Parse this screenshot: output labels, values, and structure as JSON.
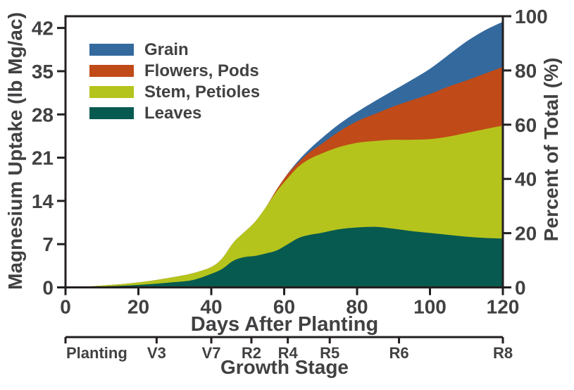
{
  "colors": {
    "background": "#ffffff",
    "text": "#414042",
    "axis": "#231f20"
  },
  "legend": {
    "items": [
      {
        "label": "Grain",
        "color": "#34699e"
      },
      {
        "label": "Flowers, Pods",
        "color": "#c04a18"
      },
      {
        "label": "Stem, Petioles",
        "color": "#b5c41c"
      },
      {
        "label": "Leaves",
        "color": "#075a50"
      }
    ]
  },
  "chart_data": {
    "type": "area",
    "stacked": true,
    "title": "",
    "xlabel": "Days After Planting",
    "ylabel_left": "Magnesium Uptake (lb Mg/ac)",
    "ylabel_right": "Percent of Total (%)",
    "stage_axis_label": "Growth Stage",
    "x_range": [
      0,
      120
    ],
    "y_left_range": [
      0,
      43.9
    ],
    "y_right_range": [
      0,
      100
    ],
    "x_ticks": [
      0,
      20,
      40,
      60,
      80,
      100,
      120
    ],
    "y_left_ticks": [
      0,
      7,
      14,
      21,
      28,
      35,
      42
    ],
    "y_right_ticks": [
      0,
      20,
      40,
      60,
      80,
      100
    ],
    "grid": false,
    "legend_position": "upper-left-inside",
    "x": [
      0,
      5,
      10,
      15,
      20,
      25,
      30,
      35,
      40,
      43,
      46,
      49,
      52,
      55,
      58,
      61,
      64,
      67,
      70,
      75,
      80,
      85,
      90,
      95,
      100,
      105,
      110,
      115,
      120
    ],
    "series": [
      {
        "name": "Grain",
        "color": "#34699e",
        "values": [
          0,
          0,
          0,
          0,
          0,
          0,
          0,
          0,
          0,
          0,
          0,
          0,
          0,
          0,
          0,
          0.05,
          0.3,
          0.5,
          0.9,
          1.2,
          1.5,
          2.1,
          2.6,
          3.3,
          4.1,
          5.1,
          6.3,
          7.0,
          7.3
        ]
      },
      {
        "name": "Flowers, Pods",
        "color": "#c04a18",
        "values": [
          0,
          0,
          0,
          0,
          0,
          0,
          0,
          0,
          0,
          0,
          0,
          0,
          0,
          0,
          0.3,
          0.7,
          0.7,
          1.1,
          1.5,
          2.5,
          3.5,
          4.4,
          5.4,
          6.4,
          7.3,
          8.1,
          8.5,
          9.0,
          9.5
        ]
      },
      {
        "name": "Stem, Petioles",
        "color": "#b5c41c",
        "values": [
          0,
          0.05,
          0.15,
          0.25,
          0.4,
          0.6,
          0.85,
          1.1,
          1.1,
          1.7,
          2.9,
          4.0,
          5.5,
          7.5,
          9.6,
          10.7,
          11.6,
          12.3,
          12.8,
          13.3,
          13.7,
          13.9,
          14.4,
          14.8,
          15.2,
          15.9,
          16.8,
          17.6,
          18.3
        ]
      },
      {
        "name": "Leaves",
        "color": "#075a50",
        "values": [
          0,
          0.05,
          0.15,
          0.25,
          0.4,
          0.6,
          0.85,
          1.2,
          2.2,
          3.0,
          4.3,
          4.9,
          5.1,
          5.5,
          6.0,
          7.0,
          8.0,
          8.5,
          8.8,
          9.4,
          9.7,
          9.8,
          9.5,
          9.1,
          8.8,
          8.5,
          8.2,
          8.0,
          7.9
        ]
      }
    ],
    "stack_order_bottom_to_top": [
      "Leaves",
      "Stem, Petioles",
      "Flowers, Pods",
      "Grain"
    ],
    "growth_stages": [
      {
        "label": "Planting",
        "day": 0,
        "align": "left"
      },
      {
        "label": "V3",
        "day": 25,
        "align": "center"
      },
      {
        "label": "V7",
        "day": 40,
        "align": "center"
      },
      {
        "label": "R2",
        "day": 51,
        "align": "center"
      },
      {
        "label": "R4",
        "day": 61,
        "align": "center"
      },
      {
        "label": "R5",
        "day": 72.5,
        "align": "center"
      },
      {
        "label": "R6",
        "day": 91.5,
        "align": "center"
      },
      {
        "label": "R8",
        "day": 120,
        "align": "center"
      }
    ]
  }
}
